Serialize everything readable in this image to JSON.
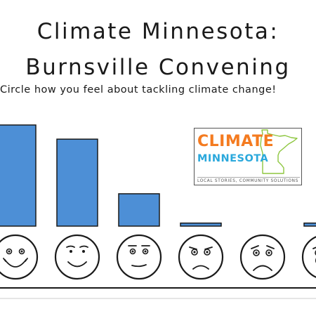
{
  "header": {
    "title_line_1": "Climate Minnesota:",
    "title_line_2": "Burnsville Convening",
    "subtitle": "Circle how you feel about tackling climate change!"
  },
  "logo": {
    "word_1": "CLIMATE",
    "word_2": "MINNESOTA",
    "tagline": "LOCAL STORIES, COMMUNITY SOLUTIONS",
    "colors": {
      "climate": "#f47b20",
      "minnesota": "#2aa8dc",
      "state_outline": "#8dc63f"
    }
  },
  "chart_data": {
    "type": "bar",
    "categories": [
      "very-happy-face",
      "happy-face",
      "neutral-face",
      "worried-face",
      "sad-face",
      "crying-face"
    ],
    "values": [
      100,
      86,
      32,
      3,
      0,
      3
    ],
    "ylim": [
      0,
      100
    ],
    "grid": false,
    "bar_color": "#4d8fd6",
    "bar_outline": "#1a1a1a"
  }
}
